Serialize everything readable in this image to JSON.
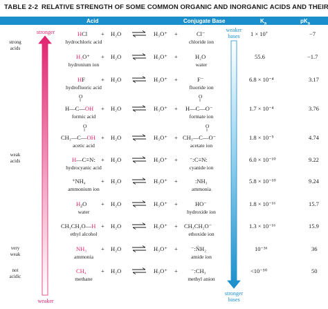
{
  "table": {
    "number": "TABLE 2-2",
    "caption": "RELATIVE STRENGTH OF SOME COMMON ORGANIC AND INORGANIC ACIDS AND THEIR CONJUGATE BASES"
  },
  "headers": {
    "acid": "Acid",
    "conjugate_base": "Conjugate Base",
    "ka": "K",
    "ka_sub": "a",
    "pka": "pK",
    "pka_sub": "a"
  },
  "left_labels": {
    "strong": [
      "strong",
      "acids"
    ],
    "weak": [
      "weak",
      "acids"
    ],
    "very_weak": [
      "very",
      "weak"
    ],
    "not_acidic": [
      "not",
      "acidic"
    ]
  },
  "acid_arrow": {
    "top": "stronger",
    "bottom": "weaker"
  },
  "base_arrow": {
    "top": [
      "weaker",
      "bases"
    ],
    "bottom": [
      "stronger",
      "bases"
    ]
  },
  "common": {
    "plus": "+",
    "water": "H₂O",
    "hydronium": "H₃O⁺"
  },
  "rows": [
    {
      "acid_plain": "Cl",
      "acid_red": "H",
      "acid_name": "hydrochloric acid",
      "base": "Cl⁻",
      "base_name": "chloride ion",
      "ka": "1 × 10⁷",
      "pka": "−7"
    },
    {
      "acid_plain": "O⁺",
      "acid_red": "H₃",
      "acid_name": "hydronium ion",
      "base": "H₂O",
      "base_name": "water",
      "ka": "55.6",
      "pka": "−1.7"
    },
    {
      "acid_plain": "F",
      "acid_red": "H",
      "acid_name": "hydrofluoric acid",
      "base": "F⁻",
      "base_name": "fluoride ion",
      "ka": "6.8 × 10⁻⁴",
      "pka": "3.17"
    },
    {
      "acid_top": "O",
      "acid_mid": "‖",
      "acid_formula": "H—C—",
      "acid_red": "OH",
      "acid_name": "formic acid",
      "base_top": "O",
      "base_mid": "‖",
      "base": "H—C—O⁻",
      "base_name": "formate ion",
      "ka": "1.7 × 10⁻⁴",
      "pka": "3.76"
    },
    {
      "acid_top": "O",
      "acid_mid": "‖",
      "acid_formula": "CH₃—C—",
      "acid_red": "OH",
      "acid_name": "acetic acid",
      "base_top": "O",
      "base_mid": "‖",
      "base": "CH₃—C—O⁻",
      "base_name": "acetate ion",
      "ka": "1.8 × 10⁻⁵",
      "pka": "4.74"
    },
    {
      "acid_plain": "—C≡N:",
      "acid_red": "H",
      "acid_name": "hydrocyanic acid",
      "base": "⁻:C≡N:",
      "base_name": "cyanide ion",
      "ka": "6.0 × 10⁻¹⁰",
      "pka": "9.22"
    },
    {
      "acid_plain": "⁺NH₄",
      "acid_red": "",
      "acid_name": "ammonium ion",
      "base": ":NH₃",
      "base_name": "ammonia",
      "ka": "5.8 × 10⁻¹⁰",
      "pka": "9.24"
    },
    {
      "acid_plain": "O",
      "acid_red": "H",
      "acid_name": "water",
      "base": "HO⁻",
      "base_name": "hydroxide ion",
      "ka": "1.8 × 10⁻¹⁶",
      "pka": "15.7"
    },
    {
      "acid_plain": "CH₃CH₂O—",
      "acid_red": "H",
      "acid_name": "ethyl alcohol",
      "base": "CH₃CH₂O⁻",
      "base_name": "ethoxide ion",
      "ka": "1.3 × 10⁻¹⁶",
      "pka": "15.9"
    },
    {
      "acid_plain": "NH₃",
      "acid_red": "",
      "acid_name": "ammonia",
      "base": "⁻:N̈H₂",
      "base_name": "amide ion",
      "ka": "10⁻³⁶",
      "pka": "36"
    },
    {
      "acid_plain": "CH₄",
      "acid_red": "",
      "acid_name": "methane",
      "base": "⁻:CH₃",
      "base_name": "methyl anion",
      "ka": "<10⁻⁵⁰",
      "pka": "50"
    }
  ]
}
